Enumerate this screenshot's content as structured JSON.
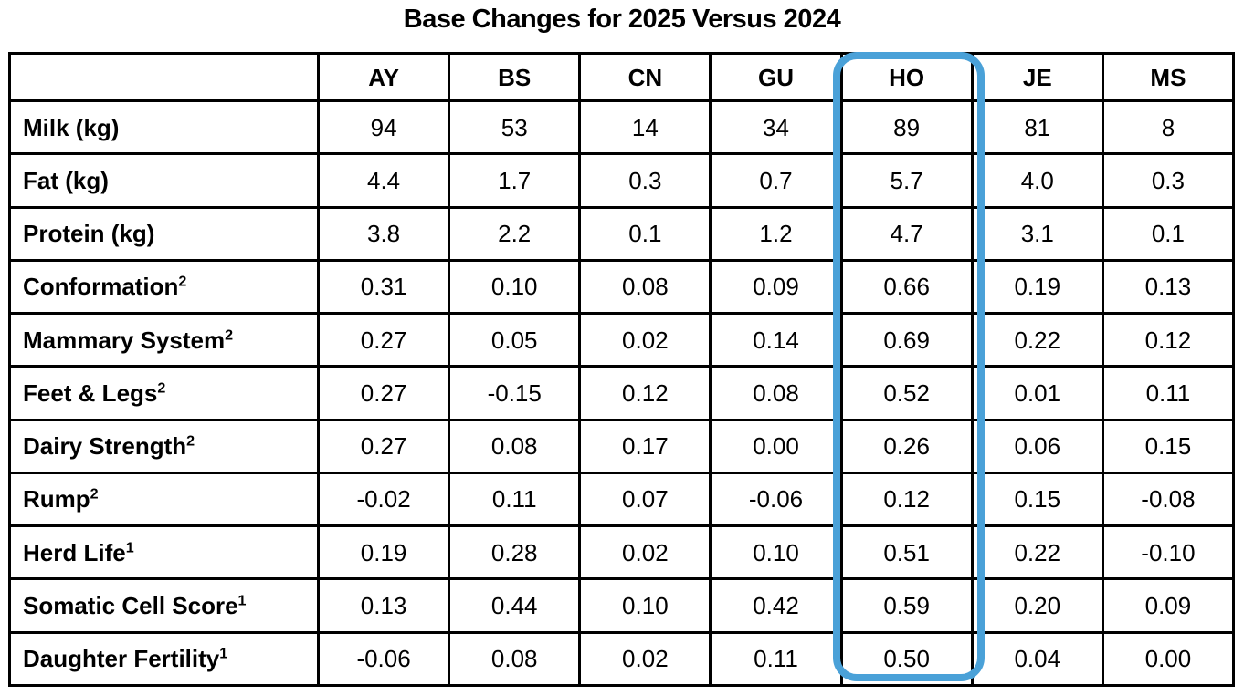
{
  "title": "Base Changes for 2025 Versus 2024",
  "highlight": {
    "column": "HO",
    "color": "#4aa1d8"
  },
  "chart_data": {
    "type": "table",
    "title": "Base Changes for 2025 Versus 2024",
    "columns": [
      "",
      "AY",
      "BS",
      "CN",
      "GU",
      "HO",
      "JE",
      "MS"
    ],
    "highlighted_column": "HO",
    "rows": [
      {
        "label": "Milk (kg)",
        "sup": "",
        "values": [
          "94",
          "53",
          "14",
          "34",
          "89",
          "81",
          "8"
        ]
      },
      {
        "label": "Fat (kg)",
        "sup": "",
        "values": [
          "4.4",
          "1.7",
          "0.3",
          "0.7",
          "5.7",
          "4.0",
          "0.3"
        ]
      },
      {
        "label": "Protein (kg)",
        "sup": "",
        "values": [
          "3.8",
          "2.2",
          "0.1",
          "1.2",
          "4.7",
          "3.1",
          "0.1"
        ]
      },
      {
        "label": "Conformation",
        "sup": "2",
        "values": [
          "0.31",
          "0.10",
          "0.08",
          "0.09",
          "0.66",
          "0.19",
          "0.13"
        ]
      },
      {
        "label": "Mammary System",
        "sup": "2",
        "values": [
          "0.27",
          "0.05",
          "0.02",
          "0.14",
          "0.69",
          "0.22",
          "0.12"
        ]
      },
      {
        "label": "Feet & Legs",
        "sup": "2",
        "values": [
          "0.27",
          "-0.15",
          "0.12",
          "0.08",
          "0.52",
          "0.01",
          "0.11"
        ]
      },
      {
        "label": "Dairy Strength",
        "sup": "2",
        "values": [
          "0.27",
          "0.08",
          "0.17",
          "0.00",
          "0.26",
          "0.06",
          "0.15"
        ]
      },
      {
        "label": "Rump",
        "sup": "2",
        "values": [
          "-0.02",
          "0.11",
          "0.07",
          "-0.06",
          "0.12",
          "0.15",
          "-0.08"
        ]
      },
      {
        "label": "Herd Life",
        "sup": "1",
        "values": [
          "0.19",
          "0.28",
          "0.02",
          "0.10",
          "0.51",
          "0.22",
          "-0.10"
        ]
      },
      {
        "label": "Somatic Cell Score",
        "sup": "1",
        "values": [
          "0.13",
          "0.44",
          "0.10",
          "0.42",
          "0.59",
          "0.20",
          "0.09"
        ]
      },
      {
        "label": "Daughter Fertility",
        "sup": "1",
        "values": [
          "-0.06",
          "0.08",
          "0.02",
          "0.11",
          "0.50",
          "0.04",
          "0.00"
        ]
      }
    ]
  }
}
